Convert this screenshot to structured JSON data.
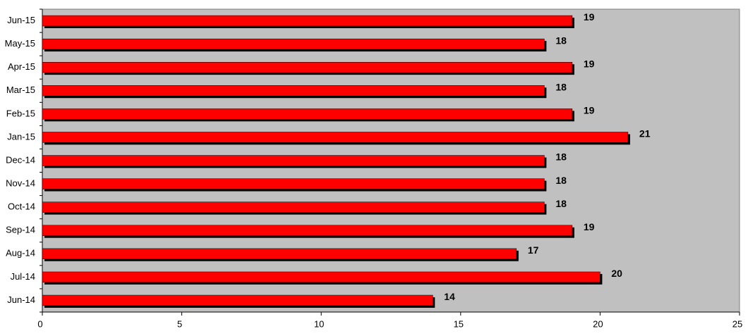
{
  "chart_data": {
    "type": "bar",
    "orientation": "horizontal",
    "categories": [
      "Jun-14",
      "Jul-14",
      "Aug-14",
      "Sep-14",
      "Oct-14",
      "Nov-14",
      "Dec-14",
      "Jan-15",
      "Feb-15",
      "Mar-15",
      "Apr-15",
      "May-15",
      "Jun-15"
    ],
    "values": [
      14,
      20,
      17,
      19,
      18,
      18,
      18,
      21,
      19,
      18,
      19,
      18,
      19
    ],
    "color": "#ff0000",
    "xlim": [
      0,
      25
    ],
    "xticks": [
      0,
      5,
      10,
      15,
      20,
      25
    ]
  }
}
